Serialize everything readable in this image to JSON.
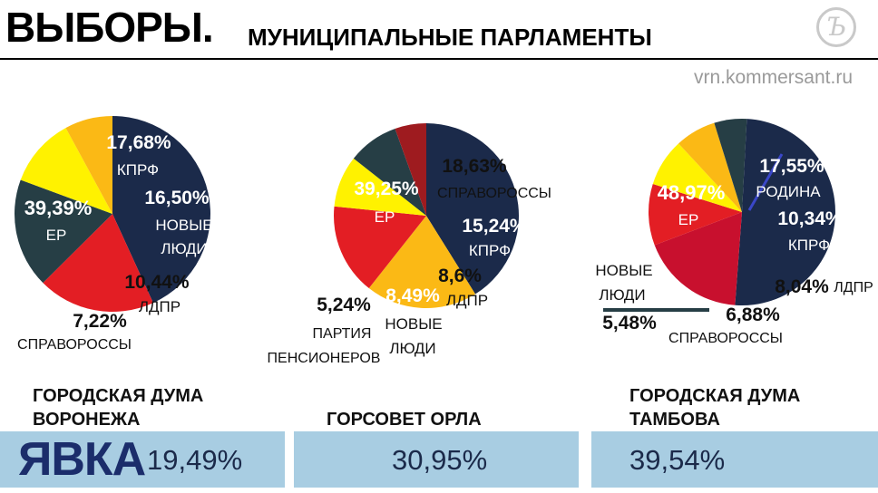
{
  "header": {
    "title": "ВЫБОРЫ.",
    "subtitle": "МУНИЦИПАЛЬНЫЕ ПАРЛАМЕНТЫ",
    "site": "vrn.kommersant.ru",
    "logo_text": "Ъ"
  },
  "colors": {
    "ER": "#1b2a4a",
    "KPRF": "#e31e24",
    "NewPeople": "#263e45",
    "LDPR": "#fff200",
    "SR": "#fbb915",
    "Pensioners": "#9e1b1f",
    "Rodina": "#c8102e",
    "turnout_bar": "#a8cde2"
  },
  "chart_data": [
    {
      "type": "pie",
      "title": "ГОРОДСКАЯ ДУМА ВОРОНЕЖА",
      "slices": [
        {
          "party": "ЕР",
          "value": 39.39,
          "label": "39,39%",
          "color_key": "ER"
        },
        {
          "party": "КПРФ",
          "value": 17.68,
          "label": "17,68%",
          "color_key": "KPRF"
        },
        {
          "party": "НОВЫЕ ЛЮДИ",
          "value": 16.5,
          "label": "16,50%",
          "color_key": "NewPeople"
        },
        {
          "party": "ЛДПР",
          "value": 10.44,
          "label": "10,44%",
          "color_key": "LDPR"
        },
        {
          "party": "СПРАВОРОССЫ",
          "value": 7.22,
          "label": "7,22%",
          "color_key": "SR"
        }
      ],
      "turnout": "19,49%"
    },
    {
      "type": "pie",
      "title": "ГОРСОВЕТ ОРЛА",
      "slices": [
        {
          "party": "ЕР",
          "value": 39.25,
          "label": "39,25%",
          "color_key": "ER"
        },
        {
          "party": "СПРАВОРОССЫ",
          "value": 18.63,
          "label": "18,63%",
          "color_key": "SR"
        },
        {
          "party": "КПРФ",
          "value": 15.24,
          "label": "15,24%",
          "color_key": "KPRF"
        },
        {
          "party": "ЛДПР",
          "value": 8.6,
          "label": "8,6%",
          "color_key": "LDPR"
        },
        {
          "party": "НОВЫЕ ЛЮДИ",
          "value": 8.49,
          "label": "8,49%",
          "color_key": "NewPeople"
        },
        {
          "party": "ПАРТИЯ ПЕНСИОНЕРОВ",
          "value": 5.24,
          "label": "5,24%",
          "color_key": "Pensioners"
        }
      ],
      "turnout": "30,95%"
    },
    {
      "type": "pie",
      "title": "ГОРОДСКАЯ ДУМА ТАМБОВА",
      "slices": [
        {
          "party": "ЕР",
          "value": 48.97,
          "label": "48,97%",
          "color_key": "ER"
        },
        {
          "party": "РОДИНА",
          "value": 17.55,
          "label": "17,55%",
          "color_key": "Rodina"
        },
        {
          "party": "КПРФ",
          "value": 10.34,
          "label": "10,34%",
          "color_key": "KPRF"
        },
        {
          "party": "ЛДПР",
          "value": 8.04,
          "label": "8,04%",
          "color_key": "LDPR"
        },
        {
          "party": "СПРАВОРОССЫ",
          "value": 6.88,
          "label": "6,88%",
          "color_key": "SR"
        },
        {
          "party": "НОВЫЕ ЛЮДИ",
          "value": 5.48,
          "label": "5,48%",
          "color_key": "NewPeople"
        }
      ],
      "turnout": "39,54%"
    }
  ],
  "turnout_label": "ЯВКА",
  "captions": {
    "vrn_line1": "ГОРОДСКАЯ ДУМА",
    "vrn_line2": "ВОРОНЕЖА",
    "orel": "ГОРСОВЕТ ОРЛА",
    "tmb_line1": "ГОРОДСКАЯ ДУМА",
    "tmb_line2": "ТАМБОВА"
  },
  "labels": {
    "vrn": {
      "er_pct": "39,39%",
      "er_name": "ЕР",
      "kprf_pct": "17,68%",
      "kprf_name": "КПРФ",
      "np_pct": "16,50%",
      "np_name1": "НОВЫЕ",
      "np_name2": "ЛЮДИ",
      "ldpr_pct": "10,44%",
      "ldpr_name": "ЛДПР",
      "sr_pct": "7,22%",
      "sr_name": "СПРАВОРОССЫ"
    },
    "orel": {
      "er_pct": "39,25%",
      "er_name": "ЕР",
      "sr_pct": "18,63%",
      "sr_name": "СПРАВОРОССЫ",
      "kprf_pct": "15,24%",
      "kprf_name": "КПРФ",
      "ldpr_pct": "8,6%",
      "ldpr_name": "ЛДПР",
      "np_pct": "8,49%",
      "np_name1": "НОВЫЕ",
      "np_name2": "ЛЮДИ",
      "pens_pct": "5,24%",
      "pens_name1": "ПАРТИЯ",
      "pens_name2": "ПЕНСИОНЕРОВ"
    },
    "tmb": {
      "er_pct": "48,97%",
      "er_name": "ЕР",
      "rodina_pct": "17,55%",
      "rodina_name": "РОДИНА",
      "kprf_pct": "10,34%",
      "kprf_name": "КПРФ",
      "ldpr_pct": "8,04%",
      "ldpr_name": "ЛДПР",
      "sr_pct": "6,88%",
      "sr_name": "СПРАВОРОССЫ",
      "np_pct": "5,48%",
      "np_name1": "НОВЫЕ",
      "np_name2": "ЛЮДИ"
    }
  }
}
